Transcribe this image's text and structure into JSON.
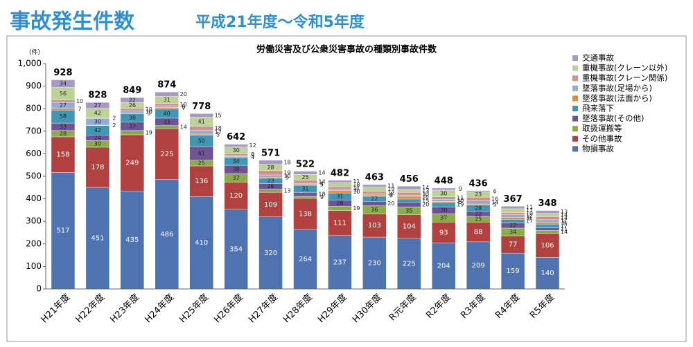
{
  "header": {
    "title": "事故発生件数",
    "subtitle": "平成21年度～令和5年度"
  },
  "chart_data": {
    "type": "stacked_bar",
    "title": "労働災害及び公衆災害事故の種類別事故件数",
    "y_label": "（件）",
    "categories": [
      "H21年度",
      "H22年度",
      "H23年度",
      "H24年度",
      "H25年度",
      "H26年度",
      "H27年度",
      "H28年度",
      "H29年度",
      "H30年度",
      "R元年度",
      "R2年度",
      "R3年度",
      "R4年度",
      "R5年度"
    ],
    "totals": [
      928,
      828,
      849,
      874,
      778,
      642,
      571,
      522,
      482,
      463,
      456,
      448,
      436,
      367,
      348
    ],
    "series": [
      {
        "name": "物損事故",
        "color": "#4f72b0",
        "values": [
          517,
          451,
          435,
          486,
          410,
          354,
          320,
          264,
          237,
          230,
          225,
          204,
          209,
          159,
          140
        ]
      },
      {
        "name": "その他事故",
        "color": "#b0413e",
        "values": [
          158,
          178,
          249,
          225,
          136,
          120,
          109,
          138,
          111,
          103,
          104,
          93,
          88,
          77,
          106
        ]
      },
      {
        "name": "取扱運搬等",
        "color": "#8aac4a",
        "values": [
          28,
          30,
          19,
          14,
          25,
          37,
          13,
          9,
          19,
          36,
          35,
          37,
          25,
          34,
          14
        ]
      },
      {
        "name": "墜落事故(その他)",
        "color": "#6e5494",
        "values": [
          33,
          24,
          37,
          33,
          61,
          38,
          26,
          18,
          28,
          20,
          20,
          30,
          22,
          22,
          11
        ]
      },
      {
        "name": "飛来落下",
        "color": "#3f97b3",
        "values": [
          58,
          42,
          38,
          40,
          50,
          34,
          23,
          31,
          31,
          22,
          15,
          19,
          28,
          17,
          17
        ]
      },
      {
        "name": "墜落事故(法面から)",
        "color": "#e8883a",
        "values": [
          7,
          2,
          3,
          7,
          5,
          4,
          5,
          5,
          10,
          6,
          12,
          5,
          5,
          8,
          8
        ]
      },
      {
        "name": "墜落事故(足場から)",
        "color": "#93acd4",
        "values": [
          27,
          30,
          10,
          8,
          17,
          5,
          10,
          4,
          6,
          4,
          5,
          10,
          14,
          12,
          11
        ]
      },
      {
        "name": "重機事故(クレーン関係)",
        "color": "#d48e8c",
        "values": [
          10,
          2,
          10,
          10,
          18,
          8,
          19,
          14,
          11,
          12,
          13,
          11,
          16,
          10,
          14
        ]
      },
      {
        "name": "重機事故(クレーン以外)",
        "color": "#bdd396",
        "values": [
          56,
          42,
          26,
          31,
          41,
          30,
          28,
          25,
          18,
          19,
          13,
          30,
          23,
          17,
          14
        ]
      },
      {
        "name": "交通事故",
        "color": "#a898c4",
        "values": [
          34,
          27,
          22,
          20,
          15,
          12,
          18,
          14,
          11,
          11,
          14,
          9,
          6,
          11,
          13
        ]
      }
    ],
    "ylim": [
      0,
      1000
    ],
    "yticks": [
      0,
      100,
      200,
      300,
      400,
      500,
      600,
      700,
      800,
      900,
      {
        "value": 1000,
        "label": "1,000"
      }
    ]
  }
}
